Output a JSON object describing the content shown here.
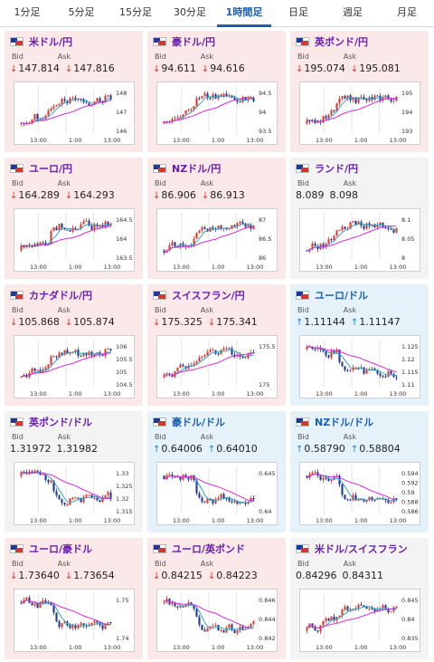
{
  "tabs": [
    "1分足",
    "5分足",
    "15分足",
    "30分足",
    "1時間足",
    "日足",
    "週足",
    "月足"
  ],
  "active_tab": 4,
  "labels": {
    "bid": "Bid",
    "ask": "Ask"
  },
  "cards": [
    {
      "pair": "米ドル/円",
      "bid": "147.814",
      "ask": "147.816",
      "dir": "down",
      "yticks": [
        "148",
        "147",
        "146"
      ],
      "xticks": [
        "13:00",
        "1:00",
        "13:00"
      ],
      "seed": 1,
      "trend": "upflat"
    },
    {
      "pair": "豪ドル/円",
      "bid": "94.611",
      "ask": "94.616",
      "dir": "down",
      "yticks": [
        "94.5",
        "94",
        "93.5"
      ],
      "xticks": [
        "13:00",
        "1:00",
        "13:00"
      ],
      "seed": 2,
      "trend": "upflat"
    },
    {
      "pair": "英ポンド/円",
      "bid": "195.074",
      "ask": "195.081",
      "dir": "down",
      "yticks": [
        "195",
        "194",
        "193"
      ],
      "xticks": [
        "13:00",
        "1:00",
        "13:00"
      ],
      "seed": 3,
      "trend": "upflat"
    },
    {
      "pair": "ユーロ/円",
      "bid": "164.289",
      "ask": "164.293",
      "dir": "down",
      "yticks": [
        "164.5",
        "164",
        "163.5"
      ],
      "xticks": [
        "13:00",
        "1:00",
        "13:00"
      ],
      "seed": 4,
      "trend": "upflat"
    },
    {
      "pair": "NZドル/円",
      "bid": "86.906",
      "ask": "86.913",
      "dir": "down",
      "yticks": [
        "87",
        "86.5",
        "86"
      ],
      "xticks": [
        "13:00",
        "1:00",
        "13:00"
      ],
      "seed": 5,
      "trend": "upflat"
    },
    {
      "pair": "ランド/円",
      "bid": "8.089",
      "ask": "8.098",
      "dir": "flat",
      "yticks": [
        "8.1",
        "8.05",
        "8"
      ],
      "xticks": [
        "13:00",
        "1:00",
        "13:00"
      ],
      "seed": 6,
      "trend": "upflat"
    },
    {
      "pair": "カナダドル/円",
      "bid": "105.868",
      "ask": "105.874",
      "dir": "down",
      "yticks": [
        "106",
        "105.5",
        "105",
        "104.5"
      ],
      "xticks": [
        "13:00",
        "1:00",
        "13:00"
      ],
      "seed": 7,
      "trend": "upflat"
    },
    {
      "pair": "スイスフラン/円",
      "bid": "175.325",
      "ask": "175.341",
      "dir": "down",
      "yticks": [
        "175.5",
        "175"
      ],
      "xticks": [
        "13:00",
        "1:00",
        "13:00"
      ],
      "seed": 8,
      "trend": "upflat"
    },
    {
      "pair": "ユーロ/ドル",
      "bid": "1.11144",
      "ask": "1.11147",
      "dir": "up",
      "yticks": [
        "1.125",
        "1.12",
        "1.115",
        "1.11"
      ],
      "xticks": [
        "13:00",
        "1:00",
        "13:00"
      ],
      "seed": 9,
      "trend": "down"
    },
    {
      "pair": "英ポンド/ドル",
      "bid": "1.31972",
      "ask": "1.31982",
      "dir": "flat",
      "yticks": [
        "1.33",
        "1.325",
        "1.32",
        "1.315"
      ],
      "xticks": [
        "13:00",
        "1:00",
        "13:00"
      ],
      "seed": 10,
      "trend": "down"
    },
    {
      "pair": "豪ドル/ドル",
      "bid": "0.64006",
      "ask": "0.64010",
      "dir": "up",
      "yticks": [
        "0.645",
        "0.64"
      ],
      "xticks": [
        "13:00",
        "1:00",
        "13:00"
      ],
      "seed": 11,
      "trend": "down"
    },
    {
      "pair": "NZドル/ドル",
      "bid": "0.58790",
      "ask": "0.58804",
      "dir": "up",
      "yticks": [
        "0.594",
        "0.592",
        "0.59",
        "0.588",
        "0.586"
      ],
      "xticks": [
        "13:00",
        "1:00",
        "13:00"
      ],
      "seed": 12,
      "trend": "down"
    },
    {
      "pair": "ユーロ/豪ドル",
      "bid": "1.73640",
      "ask": "1.73654",
      "dir": "down",
      "yticks": [
        "1.75",
        "1.74"
      ],
      "xticks": [
        "13:00",
        "1:00",
        "13:00"
      ],
      "seed": 13,
      "trend": "down"
    },
    {
      "pair": "ユーロ/英ポンド",
      "bid": "0.84215",
      "ask": "0.84223",
      "dir": "down",
      "yticks": [
        "0.846",
        "0.844",
        "0.842"
      ],
      "xticks": [
        "13:00",
        "1:00",
        "13:00"
      ],
      "seed": 14,
      "trend": "down"
    },
    {
      "pair": "米ドル/スイスフラン",
      "bid": "0.84296",
      "ask": "0.84311",
      "dir": "flat",
      "yticks": [
        "0.845",
        "0.84",
        "0.835"
      ],
      "xticks": [
        "13:00",
        "1:00",
        "13:00"
      ],
      "seed": 15,
      "trend": "upflat"
    }
  ],
  "colors": {
    "up_candle": "#e03a2f",
    "down_candle": "#1f3a93",
    "ma_short": "#3aa0c8",
    "ma_long": "#d62bd6"
  }
}
